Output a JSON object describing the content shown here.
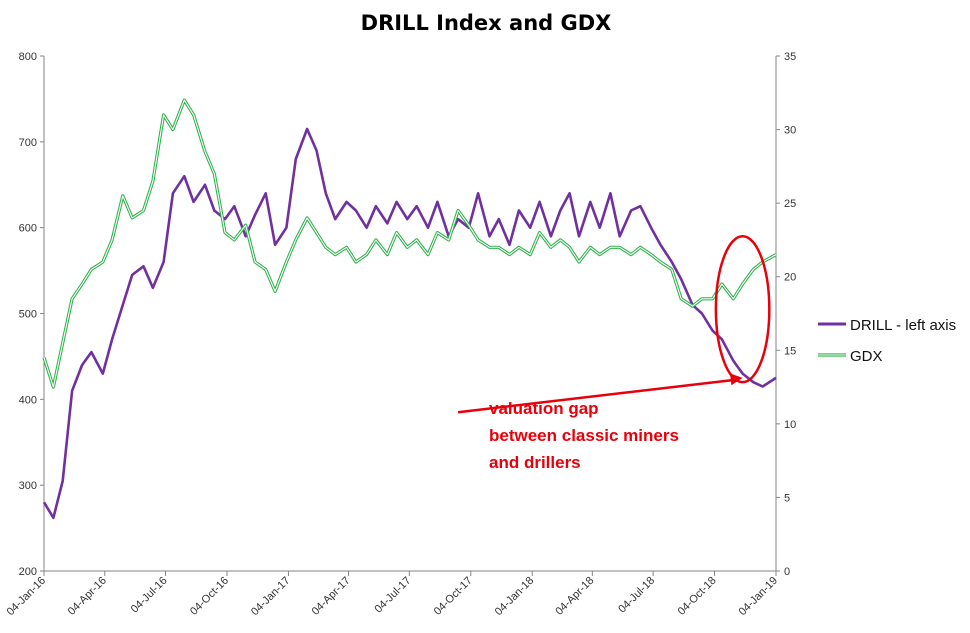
{
  "chart_data": {
    "type": "line",
    "title": "DRILL Index and GDX",
    "x_tick_labels": [
      "04-Jan-16",
      "04-Apr-16",
      "04-Jul-16",
      "04-Oct-16",
      "04-Jan-17",
      "04-Apr-17",
      "04-Jul-17",
      "04-Oct-17",
      "04-Jan-18",
      "04-Apr-18",
      "04-Jul-18",
      "04-Oct-18",
      "04-Jan-19"
    ],
    "x_range": [
      "04-Jan-16",
      "04-Jan-19"
    ],
    "y_left": {
      "range": [
        200,
        800
      ],
      "ticks": [
        200,
        300,
        400,
        500,
        600,
        700,
        800
      ]
    },
    "y_right": {
      "range": [
        0,
        35
      ],
      "ticks": [
        0,
        5,
        10,
        15,
        20,
        25,
        30,
        35
      ]
    },
    "grid": false,
    "legend_position": "right",
    "series": [
      {
        "name": "DRILL - left axis",
        "axis": "left",
        "color": "#7030a0",
        "x": [
          "04-Jan-16",
          "18-Jan-16",
          "01-Feb-16",
          "15-Feb-16",
          "01-Mar-16",
          "15-Mar-16",
          "01-Apr-16",
          "15-Apr-16",
          "01-May-16",
          "15-May-16",
          "01-Jun-16",
          "15-Jun-16",
          "01-Jul-16",
          "15-Jul-16",
          "01-Aug-16",
          "15-Aug-16",
          "01-Sep-16",
          "15-Sep-16",
          "01-Oct-16",
          "15-Oct-16",
          "01-Nov-16",
          "15-Nov-16",
          "01-Dec-16",
          "15-Dec-16",
          "01-Jan-17",
          "15-Jan-17",
          "01-Feb-17",
          "15-Feb-17",
          "01-Mar-17",
          "15-Mar-17",
          "01-Apr-17",
          "15-Apr-17",
          "01-May-17",
          "15-May-17",
          "01-Jun-17",
          "15-Jun-17",
          "01-Jul-17",
          "15-Jul-17",
          "01-Aug-17",
          "15-Aug-17",
          "01-Sep-17",
          "15-Sep-17",
          "01-Oct-17",
          "15-Oct-17",
          "01-Nov-17",
          "15-Nov-17",
          "01-Dec-17",
          "15-Dec-17",
          "01-Jan-18",
          "15-Jan-18",
          "01-Feb-18",
          "15-Feb-18",
          "01-Mar-18",
          "15-Mar-18",
          "01-Apr-18",
          "15-Apr-18",
          "01-May-18",
          "15-May-18",
          "01-Jun-18",
          "15-Jun-18",
          "01-Jul-18",
          "15-Jul-18",
          "01-Aug-18",
          "15-Aug-18",
          "01-Sep-18",
          "15-Sep-18",
          "01-Oct-18",
          "15-Oct-18",
          "01-Nov-18",
          "15-Nov-18",
          "01-Dec-18",
          "15-Dec-18",
          "04-Jan-19"
        ],
        "values": [
          280,
          262,
          305,
          410,
          440,
          455,
          430,
          470,
          510,
          545,
          555,
          530,
          560,
          640,
          660,
          630,
          650,
          620,
          610,
          625,
          590,
          615,
          640,
          580,
          600,
          680,
          715,
          690,
          640,
          610,
          630,
          620,
          600,
          625,
          605,
          630,
          610,
          625,
          600,
          630,
          590,
          610,
          600,
          640,
          590,
          610,
          580,
          620,
          600,
          630,
          590,
          620,
          640,
          590,
          630,
          600,
          640,
          590,
          620,
          625,
          600,
          580,
          560,
          540,
          510,
          500,
          480,
          470,
          445,
          430,
          420,
          415,
          425
        ]
      },
      {
        "name": "GDX",
        "axis": "right",
        "color": "#2db24a",
        "x": [
          "04-Jan-16",
          "18-Jan-16",
          "01-Feb-16",
          "15-Feb-16",
          "01-Mar-16",
          "15-Mar-16",
          "01-Apr-16",
          "15-Apr-16",
          "01-May-16",
          "15-May-16",
          "01-Jun-16",
          "15-Jun-16",
          "01-Jul-16",
          "15-Jul-16",
          "01-Aug-16",
          "15-Aug-16",
          "01-Sep-16",
          "15-Sep-16",
          "01-Oct-16",
          "15-Oct-16",
          "01-Nov-16",
          "15-Nov-16",
          "01-Dec-16",
          "15-Dec-16",
          "01-Jan-17",
          "15-Jan-17",
          "01-Feb-17",
          "15-Feb-17",
          "01-Mar-17",
          "15-Mar-17",
          "01-Apr-17",
          "15-Apr-17",
          "01-May-17",
          "15-May-17",
          "01-Jun-17",
          "15-Jun-17",
          "01-Jul-17",
          "15-Jul-17",
          "01-Aug-17",
          "15-Aug-17",
          "01-Sep-17",
          "15-Sep-17",
          "01-Oct-17",
          "15-Oct-17",
          "01-Nov-17",
          "15-Nov-17",
          "01-Dec-17",
          "15-Dec-17",
          "01-Jan-18",
          "15-Jan-18",
          "01-Feb-18",
          "15-Feb-18",
          "01-Mar-18",
          "15-Mar-18",
          "01-Apr-18",
          "15-Apr-18",
          "01-May-18",
          "15-May-18",
          "01-Jun-18",
          "15-Jun-18",
          "01-Jul-18",
          "15-Jul-18",
          "01-Aug-18",
          "15-Aug-18",
          "01-Sep-18",
          "15-Sep-18",
          "01-Oct-18",
          "15-Oct-18",
          "01-Nov-18",
          "15-Nov-18",
          "01-Dec-18",
          "15-Dec-18",
          "04-Jan-19"
        ],
        "values": [
          14.5,
          12.5,
          15.5,
          18.5,
          19.5,
          20.5,
          21.0,
          22.5,
          25.5,
          24.0,
          24.5,
          26.5,
          31.0,
          30.0,
          32.0,
          31.0,
          28.5,
          27.0,
          23.0,
          22.5,
          23.5,
          21.0,
          20.5,
          19.0,
          21.0,
          22.5,
          24.0,
          23.0,
          22.0,
          21.5,
          22.0,
          21.0,
          21.5,
          22.5,
          21.5,
          23.0,
          22.0,
          22.5,
          21.5,
          23.0,
          22.5,
          24.5,
          23.5,
          22.5,
          22.0,
          22.0,
          21.5,
          22.0,
          21.5,
          23.0,
          22.0,
          22.5,
          22.0,
          21.0,
          22.0,
          21.5,
          22.0,
          22.0,
          21.5,
          22.0,
          21.5,
          21.0,
          20.5,
          18.5,
          18.0,
          18.5,
          18.5,
          19.5,
          18.5,
          19.5,
          20.5,
          21.0,
          21.5
        ]
      }
    ],
    "annotations": [
      {
        "type": "text",
        "lines": [
          "valuation gap",
          "between classic miners",
          "and drillers"
        ],
        "color": "#e8000b"
      },
      {
        "type": "arrow",
        "color": "#e8000b",
        "from_x": "15-Sep-17",
        "from_y_left": 385,
        "to_x": "15-Nov-18",
        "to_y_left": 425
      },
      {
        "type": "ellipse",
        "color": "#e8000b",
        "center_x": "15-Nov-18",
        "center_y_left": 505,
        "rx_days": 40,
        "ry_left": 85
      }
    ]
  }
}
